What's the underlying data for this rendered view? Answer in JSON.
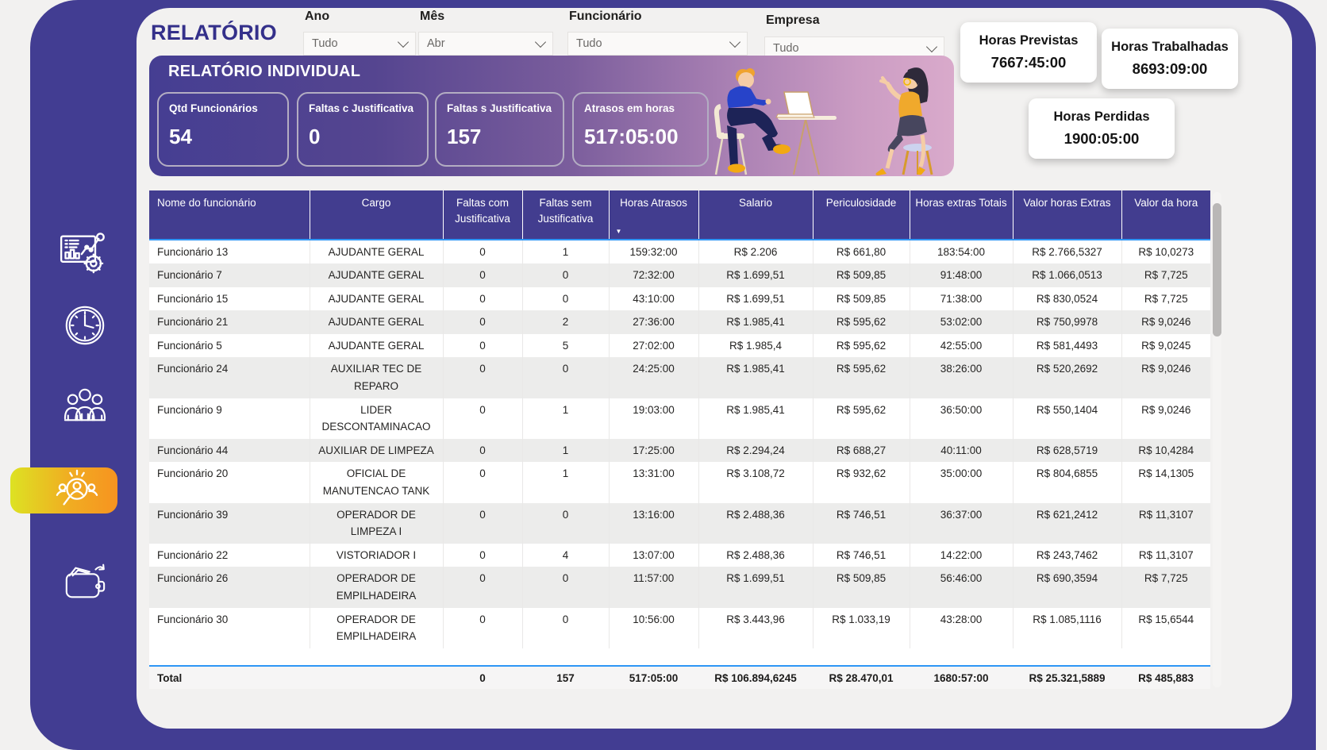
{
  "page": {
    "title": "RELATÓRIO"
  },
  "filters": [
    {
      "label": "Ano",
      "value": "Tudo"
    },
    {
      "label": "Mês",
      "value": "Abr"
    },
    {
      "label": "Funcionário",
      "value": "Tudo"
    },
    {
      "label": "Empresa",
      "value": "Tudo"
    }
  ],
  "kpis": {
    "previstas": {
      "label": "Horas Previstas",
      "value": "7667:45:00"
    },
    "trabalhadas": {
      "label": "Horas Trabalhadas",
      "value": "8693:09:00"
    },
    "perdidas": {
      "label": "Horas Perdidas",
      "value": "1900:05:00"
    }
  },
  "banner": {
    "title": "RELATÓRIO INDIVIDUAL",
    "stats": [
      {
        "label": "Qtd Funcionários",
        "value": "54"
      },
      {
        "label": "Faltas c Justificativa",
        "value": "0"
      },
      {
        "label": "Faltas s Justificativa",
        "value": "157"
      },
      {
        "label": "Atrasos em horas",
        "value": "517:05:00"
      }
    ]
  },
  "sidebar": {
    "icons": [
      {
        "name": "dashboard-report-icon",
        "active": false
      },
      {
        "name": "clock-icon",
        "active": false
      },
      {
        "name": "team-icon",
        "active": false
      },
      {
        "name": "individual-search-icon",
        "active": true
      },
      {
        "name": "wallet-icon",
        "active": false
      }
    ]
  },
  "table": {
    "columns": [
      "Nome do funcionário",
      "Cargo",
      "Faltas com Justificativa",
      "Faltas sem Justificativa",
      "Horas Atrasos",
      "Salario",
      "Periculosidade",
      "Horas extras Totais",
      "Valor horas Extras",
      "Valor da hora"
    ],
    "sort_column": "Horas Atrasos",
    "sort_direction": "desc",
    "sort_indicator": "▼",
    "rows": [
      [
        "Funcionário 13",
        "AJUDANTE GERAL",
        "0",
        "1",
        "159:32:00",
        "R$ 2.206",
        "R$ 661,80",
        "183:54:00",
        "R$ 2.766,5327",
        "R$ 10,0273"
      ],
      [
        "Funcionário 7",
        "AJUDANTE GERAL",
        "0",
        "0",
        "72:32:00",
        "R$ 1.699,51",
        "R$ 509,85",
        "91:48:00",
        "R$ 1.066,0513",
        "R$ 7,725"
      ],
      [
        "Funcionário 15",
        "AJUDANTE GERAL",
        "0",
        "0",
        "43:10:00",
        "R$ 1.699,51",
        "R$ 509,85",
        "71:38:00",
        "R$ 830,0524",
        "R$ 7,725"
      ],
      [
        "Funcionário 21",
        "AJUDANTE GERAL",
        "0",
        "2",
        "27:36:00",
        "R$ 1.985,41",
        "R$ 595,62",
        "53:02:00",
        "R$ 750,9978",
        "R$ 9,0246"
      ],
      [
        "Funcionário 5",
        "AJUDANTE GERAL",
        "0",
        "5",
        "27:02:00",
        "R$ 1.985,4",
        "R$ 595,62",
        "42:55:00",
        "R$ 581,4493",
        "R$ 9,0245"
      ],
      [
        "Funcionário 24",
        "AUXILIAR TEC DE REPARO",
        "0",
        "0",
        "24:25:00",
        "R$ 1.985,41",
        "R$ 595,62",
        "38:26:00",
        "R$ 520,2692",
        "R$ 9,0246"
      ],
      [
        "Funcionário 9",
        "LIDER DESCONTAMINACAO",
        "0",
        "1",
        "19:03:00",
        "R$ 1.985,41",
        "R$ 595,62",
        "36:50:00",
        "R$ 550,1404",
        "R$ 9,0246"
      ],
      [
        "Funcionário 44",
        "AUXILIAR DE LIMPEZA",
        "0",
        "1",
        "17:25:00",
        "R$ 2.294,24",
        "R$ 688,27",
        "40:11:00",
        "R$ 628,5719",
        "R$ 10,4284"
      ],
      [
        "Funcionário 20",
        "OFICIAL DE MANUTENCAO TANK",
        "0",
        "1",
        "13:31:00",
        "R$ 3.108,72",
        "R$ 932,62",
        "35:00:00",
        "R$ 804,6855",
        "R$ 14,1305"
      ],
      [
        "Funcionário 39",
        "OPERADOR DE LIMPEZA I",
        "0",
        "0",
        "13:16:00",
        "R$ 2.488,36",
        "R$ 746,51",
        "36:37:00",
        "R$ 621,2412",
        "R$ 11,3107"
      ],
      [
        "Funcionário 22",
        "VISTORIADOR I",
        "0",
        "4",
        "13:07:00",
        "R$ 2.488,36",
        "R$ 746,51",
        "14:22:00",
        "R$ 243,7462",
        "R$ 11,3107"
      ],
      [
        "Funcionário 26",
        "OPERADOR DE EMPILHADEIRA",
        "0",
        "0",
        "11:57:00",
        "R$ 1.699,51",
        "R$ 509,85",
        "56:46:00",
        "R$ 690,3594",
        "R$ 7,725"
      ],
      [
        "Funcionário 30",
        "OPERADOR DE EMPILHADEIRA",
        "0",
        "0",
        "10:56:00",
        "R$ 3.443,96",
        "R$ 1.033,19",
        "43:28:00",
        "R$ 1.085,1116",
        "R$ 15,6544"
      ]
    ],
    "total": [
      "Total",
      "",
      "0",
      "157",
      "517:05:00",
      "R$ 106.894,6245",
      "R$ 28.470,01",
      "1680:57:00",
      "R$ 25.321,5889",
      "R$ 485,883"
    ]
  },
  "colors": {
    "frame_purple": "#423d92",
    "header_purple": "#423d8f",
    "accent_blue_line": "#2e96f5",
    "active_gradient_start": "#dde223",
    "active_gradient_end": "#f79320",
    "banner_gradient_start": "#453e92",
    "banner_gradient_end": "#d9aacb"
  }
}
